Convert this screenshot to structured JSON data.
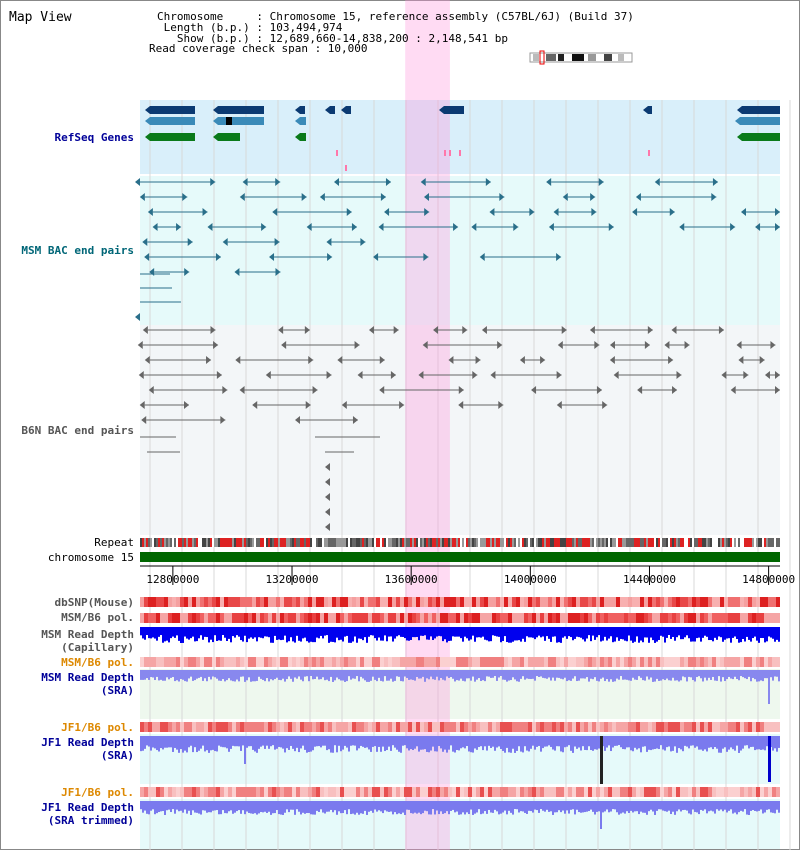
{
  "header": {
    "title": "Map View",
    "info_lines": [
      "Chromosome     : Chromosome 15, reference assembly (C57BL/6J) (Build 37)",
      " Length (b.p.) : 103,494,974",
      "   Show (b.p.) : 12,689,660-14,838,200 : 2,148,541 bp",
      "Read coverage check span : 10,000"
    ]
  },
  "tracks": {
    "refseq": {
      "label": "RefSeq Genes",
      "color": "#000099"
    },
    "msm_bac": {
      "label": "MSM BAC end pairs",
      "color": "#006677"
    },
    "b6n_bac": {
      "label": "B6N BAC end pairs",
      "color": "#555555"
    },
    "repeat": {
      "label": "Repeat"
    },
    "chromosome": {
      "label": "chromosome 15"
    },
    "dbsnp": {
      "label": "dbSNP(Mouse)"
    },
    "msm_b6_pol_1": {
      "label": "MSM/B6 pol."
    },
    "msm_depth_cap": {
      "lines": [
        "MSM Read Depth",
        "(Capillary)"
      ]
    },
    "msm_b6_pol_2": {
      "label": "MSM/B6 pol."
    },
    "msm_depth_sra": {
      "lines": [
        "MSM Read Depth",
        "(SRA)"
      ]
    },
    "jf1_b6_pol_1": {
      "label": "JF1/B6 pol."
    },
    "jf1_depth_sra": {
      "lines": [
        "JF1 Read Depth",
        "(SRA)"
      ]
    },
    "jf1_b6_pol_2": {
      "label": "JF1/B6 pol."
    },
    "jf1_depth_trim": {
      "lines": [
        "JF1 Read Depth",
        "(SRA trimmed)"
      ]
    }
  },
  "axis": {
    "ticks": [
      "12800000",
      "13200000",
      "13600000",
      "14000000",
      "14400000",
      "14800000"
    ],
    "range": [
      12689660,
      14838200
    ]
  },
  "highlight": {
    "start": 13580000,
    "end": 13730000
  },
  "colors": {
    "navy_label": "#000099",
    "teal_label": "#006677",
    "orange_label": "#dd8800",
    "gray_label": "#555555",
    "refseq_bg": "#d9effa",
    "msm_bg": "#e6fafa",
    "highlight": "#ff99dd",
    "depth_blue": "#0000ee",
    "depth_light": "#7a7aee",
    "chrom_green": "#006600"
  }
}
